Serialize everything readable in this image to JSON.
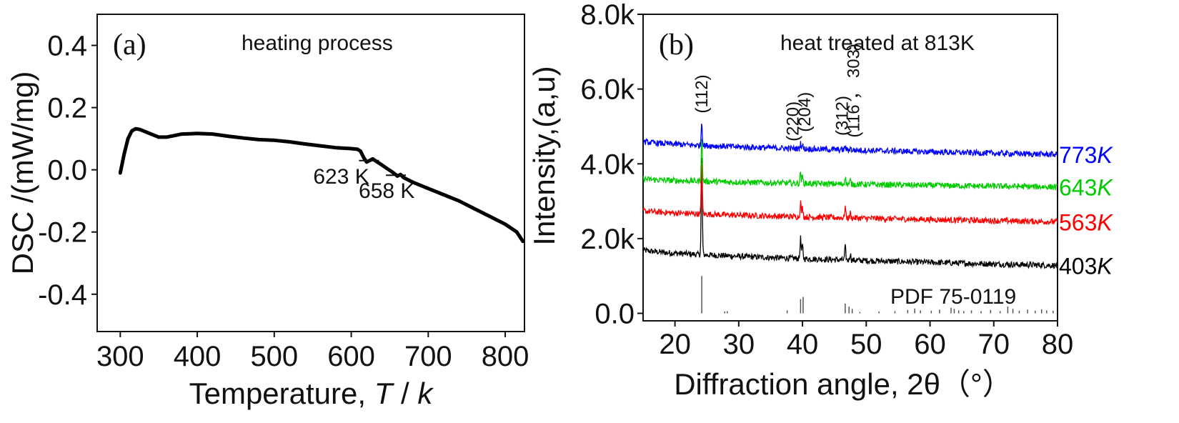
{
  "chart_data": [
    {
      "type": "line",
      "panel_label": "(a)",
      "title": "heating process",
      "xlabel": "Temperature,",
      "xlabel_var": "T",
      "xlabel_sep": " / ",
      "xlabel_unit": "k",
      "ylabel": "DSC /(mW/mg)",
      "xlim": [
        270,
        825
      ],
      "ylim": [
        -0.52,
        0.5
      ],
      "xticks": [
        300,
        400,
        500,
        600,
        700,
        800
      ],
      "yticks": [
        0.4,
        0.2,
        0.0,
        -0.2,
        -0.4
      ],
      "ytick_labels": [
        "0.4",
        "0.2",
        "0.0",
        "-0.2",
        "-0.4"
      ],
      "series": [
        {
          "color": "#000000",
          "x": [
            300,
            305,
            310,
            315,
            320,
            325,
            330,
            340,
            350,
            360,
            370,
            380,
            390,
            400,
            420,
            440,
            460,
            480,
            500,
            520,
            540,
            560,
            580,
            600,
            608,
            612,
            616,
            620,
            624,
            628,
            634,
            640,
            646,
            652,
            656,
            660,
            664,
            668,
            672,
            680,
            700,
            720,
            740,
            760,
            780,
            800,
            815,
            823
          ],
          "values": [
            -0.01,
            0.05,
            0.1,
            0.125,
            0.132,
            0.13,
            0.125,
            0.115,
            0.105,
            0.105,
            0.11,
            0.115,
            0.116,
            0.117,
            0.115,
            0.108,
            0.102,
            0.097,
            0.095,
            0.09,
            0.083,
            0.077,
            0.071,
            0.068,
            0.066,
            0.06,
            0.04,
            0.025,
            0.03,
            0.035,
            0.025,
            0.015,
            0.005,
            -0.005,
            -0.012,
            -0.02,
            -0.015,
            -0.025,
            -0.03,
            -0.04,
            -0.06,
            -0.08,
            -0.1,
            -0.125,
            -0.15,
            -0.175,
            -0.2,
            -0.23
          ]
        }
      ],
      "annotations": [
        {
          "text": "623 K",
          "x": 623,
          "y": 0.025
        },
        {
          "text": "658 K",
          "x": 658,
          "y": -0.022
        }
      ]
    },
    {
      "type": "line",
      "panel_label": "(b)",
      "title": "heat treated at 813K",
      "xlabel": "Diffraction angle, 2θ（°）",
      "ylabel": "Intensity,(a,u)",
      "xlim": [
        15,
        80
      ],
      "ylim": [
        -200,
        8000
      ],
      "xticks": [
        20,
        30,
        40,
        50,
        60,
        70,
        80
      ],
      "yticks": [
        0,
        2000,
        4000,
        6000,
        8000
      ],
      "ytick_labels": [
        "0.0",
        "2.0k",
        "4.0k",
        "6.0k",
        "8.0k"
      ],
      "series": [
        {
          "name": "403",
          "name_unit": "K",
          "color": "#000000",
          "baseline_start": 1700,
          "baseline_end": 1280,
          "peaks": [
            {
              "x": 24.2,
              "h": 2700
            },
            {
              "x": 39.7,
              "h": 550
            },
            {
              "x": 40.0,
              "h": 350
            },
            {
              "x": 46.7,
              "h": 350
            },
            {
              "x": 47.5,
              "h": 180
            }
          ]
        },
        {
          "name": "563",
          "name_unit": "K",
          "color": "#ff0000",
          "baseline_start": 2750,
          "baseline_end": 2450,
          "peaks": [
            {
              "x": 24.2,
              "h": 1500
            },
            {
              "x": 39.7,
              "h": 400
            },
            {
              "x": 40.0,
              "h": 250
            },
            {
              "x": 46.7,
              "h": 300
            },
            {
              "x": 47.5,
              "h": 130
            }
          ]
        },
        {
          "name": "643",
          "name_unit": "K",
          "color": "#00cc00",
          "baseline_start": 3600,
          "baseline_end": 3380,
          "peaks": [
            {
              "x": 24.2,
              "h": 1200
            },
            {
              "x": 39.7,
              "h": 300
            },
            {
              "x": 40.0,
              "h": 180
            },
            {
              "x": 46.7,
              "h": 200
            },
            {
              "x": 47.5,
              "h": 100
            }
          ]
        },
        {
          "name": "773",
          "name_unit": "K",
          "color": "#0000ff",
          "baseline_start": 4600,
          "baseline_end": 4250,
          "peaks": [
            {
              "x": 24.2,
              "h": 650
            },
            {
              "x": 39.7,
              "h": 150
            },
            {
              "x": 40.0,
              "h": 100
            },
            {
              "x": 46.7,
              "h": 100
            },
            {
              "x": 47.5,
              "h": 60
            }
          ]
        }
      ],
      "reference_pattern": {
        "label": "PDF 75-0119",
        "color": "#555555",
        "sticks": [
          {
            "x": 24.2,
            "y": 1000
          },
          {
            "x": 27.8,
            "y": 50
          },
          {
            "x": 28.2,
            "y": 60
          },
          {
            "x": 37.6,
            "y": 80
          },
          {
            "x": 39.7,
            "y": 380
          },
          {
            "x": 40.1,
            "y": 440
          },
          {
            "x": 46.7,
            "y": 260
          },
          {
            "x": 47.3,
            "y": 180
          },
          {
            "x": 47.8,
            "y": 120
          },
          {
            "x": 49.0,
            "y": 40
          },
          {
            "x": 52.0,
            "y": 50
          },
          {
            "x": 54.5,
            "y": 60
          },
          {
            "x": 56.5,
            "y": 90
          },
          {
            "x": 57.6,
            "y": 130
          },
          {
            "x": 58.5,
            "y": 80
          },
          {
            "x": 60.2,
            "y": 70
          },
          {
            "x": 61.5,
            "y": 100
          },
          {
            "x": 63.3,
            "y": 150
          },
          {
            "x": 63.8,
            "y": 120
          },
          {
            "x": 64.5,
            "y": 80
          },
          {
            "x": 65.3,
            "y": 60
          },
          {
            "x": 66.5,
            "y": 80
          },
          {
            "x": 68.0,
            "y": 60
          },
          {
            "x": 69.5,
            "y": 90
          },
          {
            "x": 71.0,
            "y": 60
          },
          {
            "x": 72.2,
            "y": 180
          },
          {
            "x": 73.0,
            "y": 120
          },
          {
            "x": 74.0,
            "y": 70
          },
          {
            "x": 75.3,
            "y": 100
          },
          {
            "x": 76.5,
            "y": 70
          },
          {
            "x": 77.5,
            "y": 110
          },
          {
            "x": 78.3,
            "y": 80
          },
          {
            "x": 79.3,
            "y": 70
          }
        ]
      },
      "peak_labels": [
        {
          "text": "(112)",
          "x": 24.2,
          "y": 5350
        },
        {
          "text": "(220)",
          "x": 38.5,
          "y": 4600
        },
        {
          "text": "(204)",
          "x": 40.3,
          "y": 4850
        },
        {
          "text": "(312)",
          "x": 46.2,
          "y": 4750
        },
        {
          "text": "(116 ， 303)",
          "x": 48.0,
          "y": 4700
        }
      ]
    }
  ]
}
